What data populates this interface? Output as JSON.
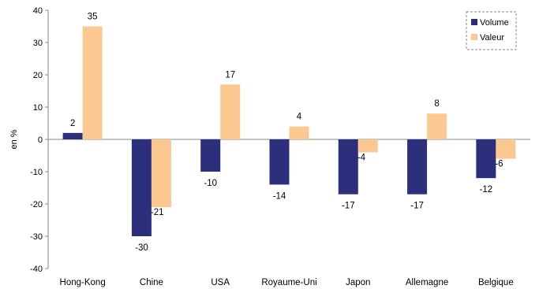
{
  "chart_data": {
    "type": "bar",
    "ylabel": "en %",
    "xlabel": "",
    "ylim": [
      -40,
      40
    ],
    "yticks": [
      40,
      30,
      20,
      10,
      0,
      -10,
      -20,
      -30,
      -40
    ],
    "categories": [
      "Hong-Kong",
      "Chine",
      "USA",
      "Royaume-Uni",
      "Japon",
      "Allemagne",
      "Belgique"
    ],
    "series": [
      {
        "name": "Volume",
        "color": "#2b2f7c",
        "values": [
          2,
          -30,
          -10,
          -14,
          -17,
          -17,
          -12
        ]
      },
      {
        "name": "Valeur",
        "color": "#fcc891",
        "values": [
          35,
          -21,
          17,
          4,
          -4,
          8,
          -6
        ]
      }
    ],
    "grid": false,
    "legend_position": "top-right"
  }
}
